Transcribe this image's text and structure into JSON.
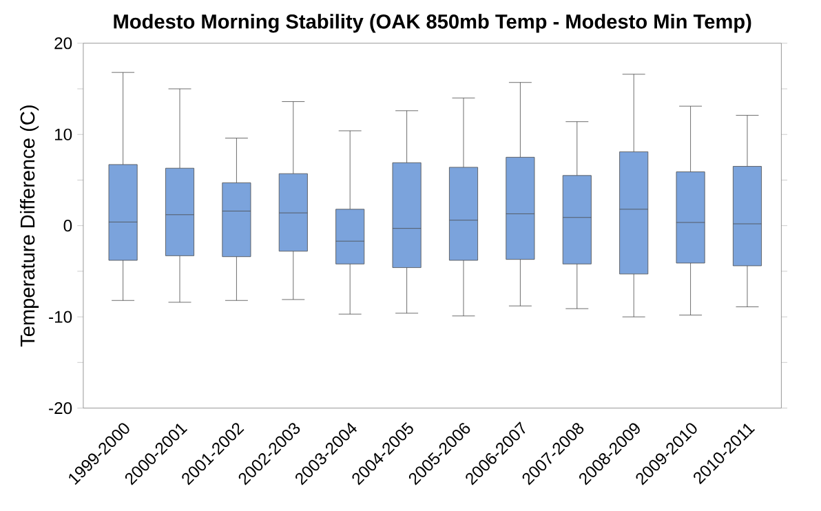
{
  "chart_data": {
    "type": "box",
    "title": "Modesto Morning Stability (OAK 850mb Temp - Modesto Min Temp)",
    "ylabel": "Temperature Difference (C)",
    "categories": [
      "1999-2000",
      "2000-2001",
      "2001-2002",
      "2002-2003",
      "2003-2004",
      "2004-2005",
      "2005-2006",
      "2006-2007",
      "2007-2008",
      "2008-2009",
      "2009-2010",
      "2010-2011"
    ],
    "color": "#7ba3dc",
    "boxes": [
      {
        "low": -8.2,
        "q1": -3.8,
        "median": 0.4,
        "q3": 6.7,
        "high": 16.8
      },
      {
        "low": -8.4,
        "q1": -3.3,
        "median": 1.2,
        "q3": 6.3,
        "high": 15.0
      },
      {
        "low": -8.2,
        "q1": -3.4,
        "median": 1.6,
        "q3": 4.7,
        "high": 9.6
      },
      {
        "low": -8.1,
        "q1": -2.8,
        "median": 1.4,
        "q3": 5.7,
        "high": 13.6
      },
      {
        "low": -9.7,
        "q1": -4.2,
        "median": -1.7,
        "q3": 1.8,
        "high": 10.4
      },
      {
        "low": -9.6,
        "q1": -4.6,
        "median": -0.3,
        "q3": 6.9,
        "high": 12.6
      },
      {
        "low": -9.9,
        "q1": -3.8,
        "median": 0.6,
        "q3": 6.4,
        "high": 14.0
      },
      {
        "low": -8.8,
        "q1": -3.7,
        "median": 1.3,
        "q3": 7.5,
        "high": 15.7
      },
      {
        "low": -9.1,
        "q1": -4.2,
        "median": 0.9,
        "q3": 5.5,
        "high": 11.4
      },
      {
        "low": -10.0,
        "q1": -5.3,
        "median": 1.8,
        "q3": 8.1,
        "high": 16.6
      },
      {
        "low": -9.8,
        "q1": -4.1,
        "median": 0.35,
        "q3": 5.9,
        "high": 13.1
      },
      {
        "low": -8.9,
        "q1": -4.4,
        "median": 0.2,
        "q3": 6.5,
        "high": 12.1
      }
    ],
    "ylim": [
      -20,
      20
    ],
    "yticks": [
      -20,
      {
        "value": -15,
        "label": null
      },
      -10,
      {
        "value": -5,
        "label": null
      },
      0,
      {
        "value": 5,
        "label": null
      },
      10,
      {
        "value": 15,
        "label": null
      },
      20
    ]
  }
}
